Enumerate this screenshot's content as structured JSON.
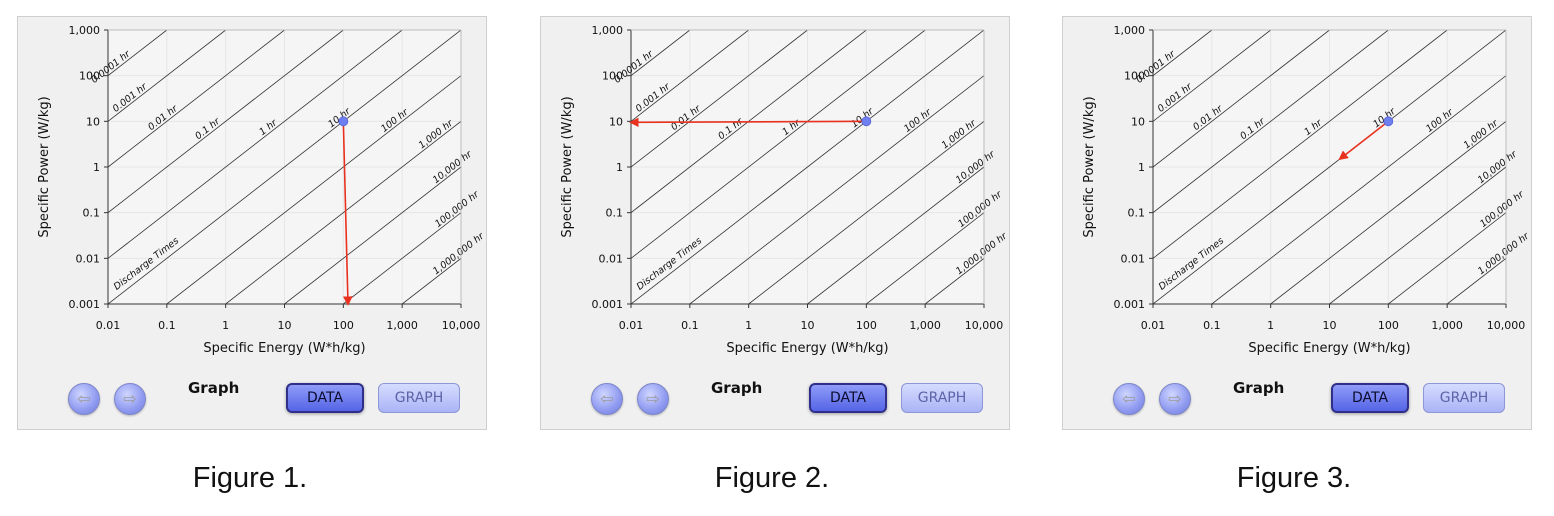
{
  "figures": [
    {
      "caption": "Figure 1.",
      "controls": {
        "back_label": "⇦",
        "forward_label": "⇨",
        "graph_label": "Graph",
        "data_label": "DATA",
        "graph_button_label": "GRAPH"
      },
      "chart_data": {
        "type": "scatter",
        "x_scale": "log",
        "y_scale": "log",
        "xlim": [
          0.01,
          10000
        ],
        "ylim": [
          0.001,
          1000
        ],
        "x_ticks": [
          "0.01",
          "0.1",
          "1",
          "10",
          "100",
          "1,000",
          "10,000"
        ],
        "y_ticks": [
          "0.001",
          "0.01",
          "0.1",
          "1",
          "10",
          "100",
          "1,000"
        ],
        "xlabel": "Specific Energy (W*h/kg)",
        "ylabel": "Specific Power (W/kg)",
        "annotation": "Discharge Times",
        "discharge_lines": [
          {
            "hours": 0.0001,
            "label": "0.0001 hr"
          },
          {
            "hours": 0.001,
            "label": "0.001 hr"
          },
          {
            "hours": 0.01,
            "label": "0.01 hr"
          },
          {
            "hours": 0.1,
            "label": "0.1 hr"
          },
          {
            "hours": 1,
            "label": "1 hr"
          },
          {
            "hours": 10,
            "label": "10 hr"
          },
          {
            "hours": 100,
            "label": "100 hr"
          },
          {
            "hours": 1000,
            "label": "1,000 hr"
          },
          {
            "hours": 10000,
            "label": "10,000 hr"
          },
          {
            "hours": 100000,
            "label": "100,000 hr"
          },
          {
            "hours": 1000000,
            "label": "1,000,000 hr"
          }
        ],
        "point": {
          "x": 100,
          "y": 10
        },
        "arrow": {
          "from": [
            100,
            10
          ],
          "to": [
            120,
            0.001
          ]
        },
        "colors": {
          "point": "#6f7ff0",
          "arrow": "#e8311f",
          "discharge_line": "#333333",
          "plot_bg": "#f5f5f5"
        }
      }
    },
    {
      "caption": "Figure 2.",
      "controls": {
        "back_label": "⇦",
        "forward_label": "⇨",
        "graph_label": "Graph",
        "data_label": "DATA",
        "graph_button_label": "GRAPH"
      },
      "chart_data": {
        "type": "scatter",
        "x_scale": "log",
        "y_scale": "log",
        "xlim": [
          0.01,
          10000
        ],
        "ylim": [
          0.001,
          1000
        ],
        "x_ticks": [
          "0.01",
          "0.1",
          "1",
          "10",
          "100",
          "1,000",
          "10,000"
        ],
        "y_ticks": [
          "0.001",
          "0.01",
          "0.1",
          "1",
          "10",
          "100",
          "1,000"
        ],
        "xlabel": "Specific Energy (W*h/kg)",
        "ylabel": "Specific Power (W/kg)",
        "annotation": "Discharge Times",
        "discharge_lines": [
          {
            "hours": 0.0001,
            "label": "0.0001 hr"
          },
          {
            "hours": 0.001,
            "label": "0.001 hr"
          },
          {
            "hours": 0.01,
            "label": "0.01 hr"
          },
          {
            "hours": 0.1,
            "label": "0.1 hr"
          },
          {
            "hours": 1,
            "label": "1 hr"
          },
          {
            "hours": 10,
            "label": "10 hr"
          },
          {
            "hours": 100,
            "label": "100 hr"
          },
          {
            "hours": 1000,
            "label": "1,000 hr"
          },
          {
            "hours": 10000,
            "label": "10,000 hr"
          },
          {
            "hours": 100000,
            "label": "100,000 hr"
          },
          {
            "hours": 1000000,
            "label": "1,000,000 hr"
          }
        ],
        "point": {
          "x": 100,
          "y": 10
        },
        "arrow": {
          "from": [
            100,
            10
          ],
          "to": [
            0.01,
            9.5
          ]
        },
        "colors": {
          "point": "#6f7ff0",
          "arrow": "#e8311f",
          "discharge_line": "#333333",
          "plot_bg": "#f5f5f5"
        }
      }
    },
    {
      "caption": "Figure 3.",
      "controls": {
        "back_label": "⇦",
        "forward_label": "⇨",
        "graph_label": "Graph",
        "data_label": "DATA",
        "graph_button_label": "GRAPH"
      },
      "chart_data": {
        "type": "scatter",
        "x_scale": "log",
        "y_scale": "log",
        "xlim": [
          0.01,
          10000
        ],
        "ylim": [
          0.001,
          1000
        ],
        "x_ticks": [
          "0.01",
          "0.1",
          "1",
          "10",
          "100",
          "1,000",
          "10,000"
        ],
        "y_ticks": [
          "0.001",
          "0.01",
          "0.1",
          "1",
          "10",
          "100",
          "1,000"
        ],
        "xlabel": "Specific Energy (W*h/kg)",
        "ylabel": "Specific Power (W/kg)",
        "annotation": "Discharge Times",
        "discharge_lines": [
          {
            "hours": 0.0001,
            "label": "0.0001 hr"
          },
          {
            "hours": 0.001,
            "label": "0.001 hr"
          },
          {
            "hours": 0.01,
            "label": "0.01 hr"
          },
          {
            "hours": 0.1,
            "label": "0.1 hr"
          },
          {
            "hours": 1,
            "label": "1 hr"
          },
          {
            "hours": 10,
            "label": "10 hr"
          },
          {
            "hours": 100,
            "label": "100 hr"
          },
          {
            "hours": 1000,
            "label": "1,000 hr"
          },
          {
            "hours": 10000,
            "label": "10,000 hr"
          },
          {
            "hours": 100000,
            "label": "100,000 hr"
          },
          {
            "hours": 1000000,
            "label": "1,000,000 hr"
          }
        ],
        "point": {
          "x": 100,
          "y": 10
        },
        "arrow": {
          "from": [
            100,
            10
          ],
          "to": [
            15,
            1.5
          ]
        },
        "colors": {
          "point": "#6f7ff0",
          "arrow": "#e8311f",
          "discharge_line": "#333333",
          "plot_bg": "#f5f5f5"
        }
      }
    }
  ]
}
